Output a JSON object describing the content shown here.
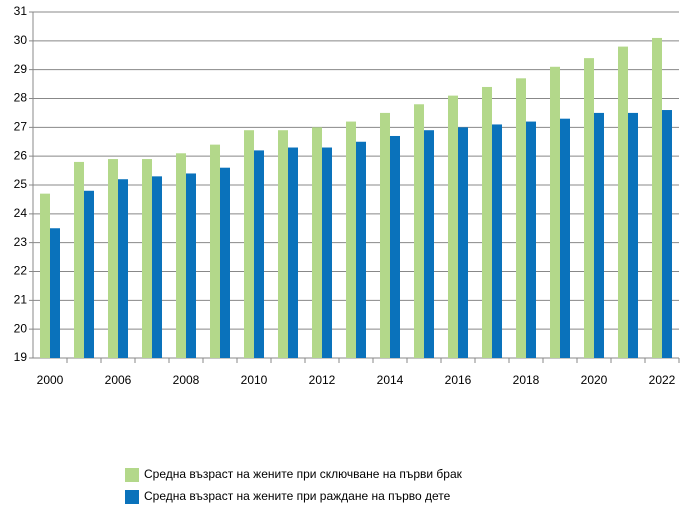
{
  "chart_data": {
    "type": "bar",
    "categories": [
      "2000",
      null,
      "2006",
      null,
      "2008",
      null,
      "2010",
      null,
      "2012",
      null,
      "2014",
      null,
      "2016",
      null,
      "2018",
      null,
      "2020",
      null,
      "2022"
    ],
    "series": [
      {
        "name": "Средна възраст на жените при сключване на първи брак",
        "color": "#b3d88a",
        "values": [
          24.7,
          25.8,
          25.9,
          25.9,
          26.1,
          26.4,
          26.9,
          26.9,
          27.0,
          27.2,
          27.5,
          27.8,
          28.1,
          28.4,
          28.7,
          29.1,
          29.4,
          29.8,
          30.1
        ]
      },
      {
        "name": "Средна възраст на жените при раждане на първо дете",
        "color": "#0a72bb",
        "values": [
          23.5,
          24.8,
          25.2,
          25.3,
          25.4,
          25.6,
          26.2,
          26.3,
          26.3,
          26.5,
          26.7,
          26.9,
          27.0,
          27.1,
          27.2,
          27.3,
          27.5,
          27.5,
          27.6
        ]
      }
    ],
    "ylim": [
      19,
      31
    ],
    "yticks": [
      19,
      20,
      21,
      22,
      23,
      24,
      25,
      26,
      27,
      28,
      29,
      30,
      31
    ],
    "grid": true,
    "legend": "bottom"
  }
}
